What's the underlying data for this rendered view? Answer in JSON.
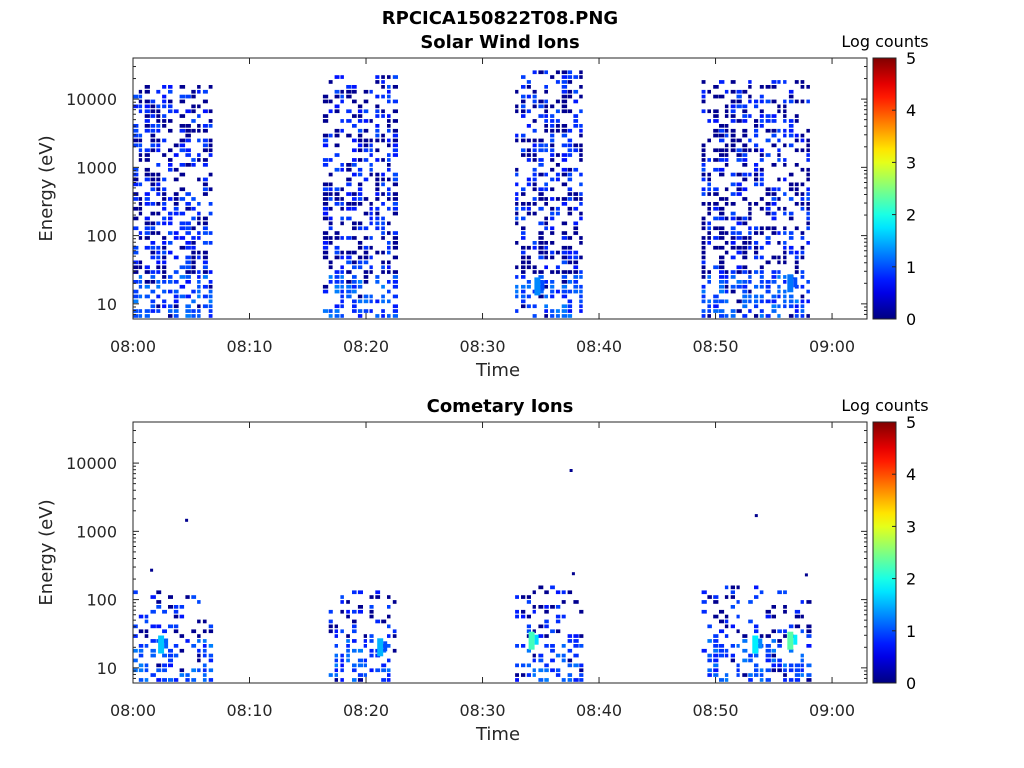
{
  "figure_title": "RPCICA150822T08.PNG",
  "chart_data": [
    {
      "type": "heatmap",
      "title": "Solar Wind Ions",
      "xlabel": "Time",
      "ylabel": "Energy (eV)",
      "x_ticks": [
        "08:00",
        "08:10",
        "08:20",
        "08:30",
        "08:40",
        "08:50",
        "09:00"
      ],
      "xlim_minutes": [
        0,
        63
      ],
      "y_ticks": [
        "10",
        "100",
        "1000",
        "10000"
      ],
      "y_tick_values": [
        10,
        100,
        1000,
        10000
      ],
      "ylim": [
        6,
        40000
      ],
      "y_scale": "log",
      "colorbar_label": "Log counts",
      "colorbar_ticks": [
        "0",
        "1",
        "2",
        "3",
        "4",
        "5"
      ],
      "colorbar_range": [
        0,
        5
      ],
      "colormap": "jet",
      "bursts": [
        {
          "start_min": 0.0,
          "end_min": 6.8,
          "emax_ev": 15000,
          "hot_spots": []
        },
        {
          "start_min": 16.3,
          "end_min": 22.8,
          "emax_ev": 20000,
          "hot_spots": []
        },
        {
          "start_min": 32.8,
          "end_min": 38.8,
          "emax_ev": 25000,
          "hot_spots": [
            {
              "time_min": 34.8,
              "energy_ev": 18,
              "log_counts": 1.3
            }
          ]
        },
        {
          "start_min": 48.8,
          "end_min": 58.3,
          "emax_ev": 18000,
          "hot_spots": [
            {
              "time_min": 56.5,
              "energy_ev": 20,
              "log_counts": 1.2
            }
          ]
        }
      ]
    },
    {
      "type": "heatmap",
      "title": "Cometary Ions",
      "xlabel": "Time",
      "ylabel": "Energy (eV)",
      "x_ticks": [
        "08:00",
        "08:10",
        "08:20",
        "08:30",
        "08:40",
        "08:50",
        "09:00"
      ],
      "xlim_minutes": [
        0,
        63
      ],
      "y_ticks": [
        "10",
        "100",
        "1000",
        "10000"
      ],
      "y_tick_values": [
        10,
        100,
        1000,
        10000
      ],
      "ylim": [
        6,
        40000
      ],
      "y_scale": "log",
      "colorbar_label": "Log counts",
      "colorbar_ticks": [
        "0",
        "1",
        "2",
        "3",
        "4",
        "5"
      ],
      "colorbar_range": [
        0,
        5
      ],
      "colormap": "jet",
      "bursts": [
        {
          "start_min": 0.0,
          "end_min": 6.6,
          "emax_ev": 130,
          "hot_spots": [
            {
              "time_min": 2.5,
              "energy_ev": 22,
              "log_counts": 1.6
            }
          ]
        },
        {
          "start_min": 16.8,
          "end_min": 22.8,
          "emax_ev": 130,
          "hot_spots": [
            {
              "time_min": 21.3,
              "energy_ev": 20,
              "log_counts": 1.5
            }
          ]
        },
        {
          "start_min": 32.8,
          "end_min": 38.8,
          "emax_ev": 140,
          "hot_spots": [
            {
              "time_min": 34.3,
              "energy_ev": 25,
              "log_counts": 2.2
            }
          ]
        },
        {
          "start_min": 48.8,
          "end_min": 58.3,
          "emax_ev": 140,
          "hot_spots": [
            {
              "time_min": 53.5,
              "energy_ev": 22,
              "log_counts": 1.8
            },
            {
              "time_min": 56.5,
              "energy_ev": 25,
              "log_counts": 2.3
            }
          ]
        }
      ],
      "isolated_points": [
        {
          "time_min": 4.6,
          "energy_ev": 1450
        },
        {
          "time_min": 37.6,
          "energy_ev": 7800
        },
        {
          "time_min": 53.5,
          "energy_ev": 1700
        },
        {
          "time_min": 1.6,
          "energy_ev": 270
        },
        {
          "time_min": 37.8,
          "energy_ev": 240
        },
        {
          "time_min": 57.8,
          "energy_ev": 230
        }
      ]
    }
  ]
}
